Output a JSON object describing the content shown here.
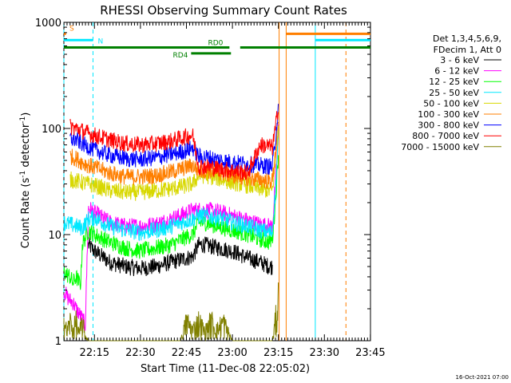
{
  "chart_data": {
    "type": "line",
    "title": "RHESSI Observing Summary Count Rates",
    "xlabel": "Start Time (11-Dec-08 22:05:02)",
    "ylabel_main": "Count Rate (s",
    "ylabel_sup1": "-1",
    "ylabel_mid": " detector",
    "ylabel_sup2": "-1",
    "ylabel_end": ")",
    "y_scale": "log",
    "ylim": [
      1,
      1000
    ],
    "xlim_minutes": [
      0,
      100
    ],
    "y_ticks": [
      {
        "value": 1000,
        "label": "1000"
      },
      {
        "value": 100,
        "label": "100"
      },
      {
        "value": 10,
        "label": "10"
      },
      {
        "value": 1,
        "label": "1"
      }
    ],
    "x_ticks": [
      {
        "minute": 9.97,
        "label": "22:15"
      },
      {
        "minute": 24.97,
        "label": "22:30"
      },
      {
        "minute": 39.97,
        "label": "22:45"
      },
      {
        "minute": 54.97,
        "label": "23:00"
      },
      {
        "minute": 69.97,
        "label": "23:15"
      },
      {
        "minute": 84.97,
        "label": "23:30"
      },
      {
        "minute": 99.97,
        "label": "23:45"
      }
    ],
    "legend_header": [
      "Det 1,3,4,5,6,9,",
      "FDecim 1, Att 0"
    ],
    "legend_placement": "right",
    "series": [
      {
        "name": "3 - 6 keV",
        "color": "#000000",
        "x": [
          8,
          10,
          15,
          20,
          25,
          30,
          35,
          40,
          42,
          44,
          46,
          50,
          55,
          60,
          64,
          67,
          68
        ],
        "y": [
          8,
          7,
          5.5,
          5,
          4.8,
          5,
          5.5,
          6,
          6.2,
          8,
          8,
          7.5,
          7,
          6,
          5.5,
          5,
          5
        ]
      },
      {
        "name": "6 - 12 keV",
        "color": "#ff00ff",
        "x": [
          0,
          1,
          2,
          3,
          4,
          5,
          6,
          7,
          8,
          10,
          15,
          20,
          25,
          30,
          35,
          40,
          42,
          44,
          46,
          50,
          55,
          60,
          64,
          67,
          68,
          69,
          70
        ],
        "y": [
          3,
          2.6,
          2.4,
          2.3,
          2,
          1.8,
          1.6,
          1.4,
          18,
          16,
          13,
          12,
          12,
          12.5,
          14,
          16,
          17,
          17,
          17,
          16.5,
          15,
          13.5,
          12.5,
          12,
          12,
          30,
          100
        ]
      },
      {
        "name": "12 - 25 keV",
        "color": "#00ff00",
        "x": [
          0,
          1,
          2,
          3,
          4,
          5,
          5.5,
          6,
          8,
          10,
          15,
          20,
          25,
          30,
          35,
          40,
          42,
          44,
          46,
          50,
          55,
          60,
          64,
          67,
          68,
          69,
          70
        ],
        "y": [
          4.5,
          4.2,
          4,
          3.5,
          4,
          3.5,
          3.5,
          8,
          11,
          10,
          8.5,
          7.5,
          7,
          7.5,
          8,
          9.5,
          10,
          13,
          13,
          12,
          11,
          10,
          9,
          8.5,
          9,
          20,
          60
        ]
      },
      {
        "name": "25 - 50 keV",
        "color": "#00e8ff",
        "x": [
          0,
          2,
          4,
          6,
          8,
          10,
          15,
          20,
          25,
          30,
          35,
          40,
          42,
          44,
          46,
          50,
          55,
          60,
          64,
          67,
          68,
          69,
          70
        ],
        "y": [
          13,
          12.5,
          12,
          11.5,
          14,
          14.5,
          12,
          11,
          10.5,
          11,
          12,
          13.5,
          14,
          15,
          15,
          14.5,
          13,
          12,
          11,
          10.5,
          10.5,
          25,
          90
        ]
      },
      {
        "name": "50 - 100 keV",
        "color": "#d8d800",
        "x": [
          2,
          4,
          6,
          8,
          10,
          15,
          20,
          25,
          30,
          35,
          40,
          42,
          44,
          46,
          50,
          55,
          60,
          64,
          67,
          68,
          69,
          70
        ],
        "y": [
          33,
          32,
          31,
          30,
          29,
          26,
          25,
          25,
          26,
          27,
          29,
          30,
          36,
          36,
          34,
          31,
          29,
          27,
          26,
          26,
          50,
          110
        ]
      },
      {
        "name": "100 - 300 keV",
        "color": "#ff7f00",
        "x": [
          2,
          4,
          6,
          8,
          10,
          15,
          20,
          25,
          30,
          35,
          40,
          42,
          44,
          46,
          50,
          55,
          60,
          64,
          67,
          68,
          69,
          70
        ],
        "y": [
          55,
          52,
          48,
          45,
          43,
          38,
          35,
          35,
          36,
          39,
          43,
          45,
          40,
          40,
          39,
          36,
          34,
          33,
          32,
          32,
          60,
          120
        ]
      },
      {
        "name": "300 - 800 keV",
        "color": "#0000ff",
        "x": [
          2,
          4,
          6,
          8,
          10,
          15,
          20,
          25,
          30,
          35,
          40,
          42,
          44,
          46,
          50,
          55,
          60,
          64,
          67,
          68,
          69,
          70
        ],
        "y": [
          80,
          78,
          72,
          67,
          63,
          56,
          52,
          51,
          53,
          57,
          62,
          66,
          54,
          54,
          51,
          48,
          46,
          45,
          44,
          44,
          80,
          160
        ]
      },
      {
        "name": "800 - 7000 keV",
        "color": "#ff0000",
        "x": [
          2,
          4,
          6,
          8,
          10,
          15,
          20,
          25,
          30,
          35,
          40,
          42,
          44,
          46,
          50,
          55,
          60,
          64,
          67,
          68,
          69,
          70
        ],
        "y": [
          104,
          100,
          95,
          90,
          86,
          78,
          72,
          70,
          72,
          76,
          84,
          87,
          44,
          44,
          42,
          40,
          38,
          70,
          68,
          66,
          100,
          170
        ]
      },
      {
        "name": "7000 - 15000 keV",
        "color": "#808000",
        "x": [
          0,
          1,
          2,
          3,
          4,
          5,
          6,
          7,
          8,
          10,
          20,
          30,
          38,
          40,
          42,
          44,
          46,
          48,
          50,
          52,
          55,
          60,
          64,
          66,
          68,
          69,
          70
        ],
        "y": [
          2,
          1.4,
          2,
          1.5,
          2,
          1.3,
          2,
          1.2,
          1,
          1,
          1,
          1,
          1,
          2,
          1.5,
          2,
          1.4,
          2,
          1.5,
          2,
          1,
          1,
          1,
          1,
          1,
          2,
          4
        ]
      }
    ],
    "flag_lines": [
      {
        "label": "S",
        "color": "#ff7f00",
        "segments": [
          [
            0,
            0.7
          ]
        ],
        "level": 780
      },
      {
        "label": "N",
        "color": "#00e8ff",
        "segments": [
          [
            0,
            9.5
          ]
        ],
        "level": 680
      },
      {
        "label": "RD0",
        "color": "#008000",
        "segments": [
          [
            0,
            54
          ],
          [
            57.5,
            100
          ]
        ],
        "level": 580
      },
      {
        "label": "RD4",
        "color": "#008000",
        "segments": [
          [
            41.5,
            54.5
          ]
        ],
        "level": 510
      },
      {
        "label": "",
        "color": "#ff7f00",
        "segments": [
          [
            72.5,
            100
          ]
        ],
        "level": 780
      },
      {
        "label": "",
        "color": "#00e8ff",
        "segments": [
          [
            82,
            100
          ]
        ],
        "level": 680
      }
    ],
    "vertical_markers": [
      {
        "minute": 0,
        "color": "#00e8ff",
        "style": "dashed"
      },
      {
        "minute": 9.5,
        "color": "#00e8ff",
        "style": "dashed"
      },
      {
        "minute": 70.2,
        "color": "#ff7f00",
        "style": "solid"
      },
      {
        "minute": 72.5,
        "color": "#ff7f00",
        "style": "solid"
      },
      {
        "minute": 82,
        "color": "#00e8ff",
        "style": "solid"
      },
      {
        "minute": 92,
        "color": "#ff7f00",
        "style": "dashed"
      }
    ]
  },
  "footer": {
    "date": "16-Oct-2021 07:00"
  }
}
